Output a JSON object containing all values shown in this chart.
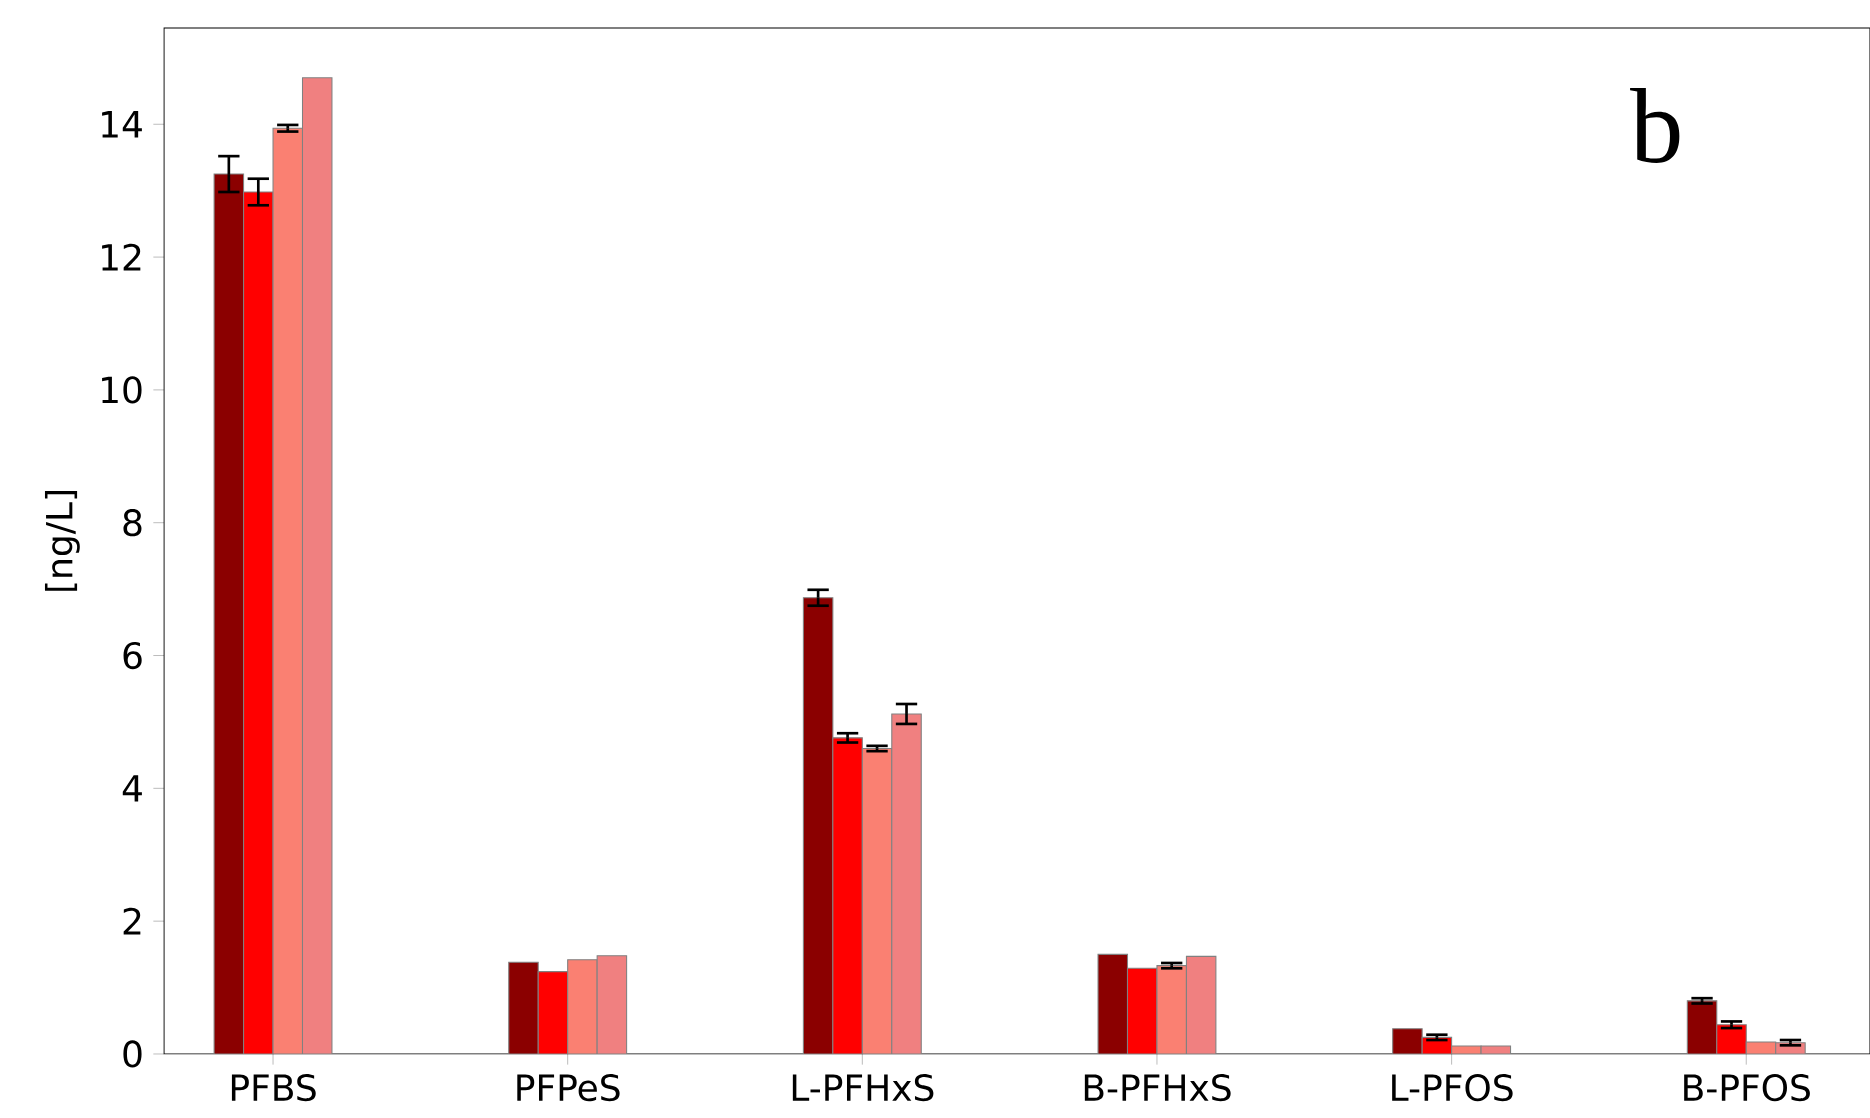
{
  "chart_data": {
    "type": "bar",
    "ylabel": "[ng/L]",
    "categories": [
      "PFBS",
      "PFPeS",
      "L-PFHxS",
      "B-PFHxS",
      "L-PFOS",
      "B-PFOS"
    ],
    "series": [
      {
        "color": "#8b0000",
        "values": [
          13.25,
          1.38,
          6.87,
          1.5,
          0.38,
          0.8
        ],
        "errors": [
          0.27,
          null,
          0.12,
          null,
          null,
          0.04
        ]
      },
      {
        "color": "#ff0000",
        "values": [
          12.98,
          1.24,
          4.76,
          1.29,
          0.25,
          0.44
        ],
        "errors": [
          0.2,
          null,
          0.07,
          null,
          0.04,
          0.05
        ]
      },
      {
        "color": "#fa8072",
        "values": [
          13.94,
          1.42,
          4.6,
          1.33,
          0.12,
          0.18
        ],
        "errors": [
          0.05,
          null,
          0.04,
          0.04,
          null,
          null
        ]
      },
      {
        "color": "#f08080",
        "values": [
          14.7,
          1.48,
          5.12,
          1.47,
          0.12,
          0.17
        ],
        "errors": [
          null,
          null,
          0.15,
          null,
          null,
          0.04
        ]
      }
    ],
    "ylim": [
      0,
      15.45
    ],
    "yticks": [
      0,
      2,
      4,
      6,
      8,
      10,
      12,
      14
    ],
    "grid": false,
    "annotations": [
      "b"
    ]
  }
}
